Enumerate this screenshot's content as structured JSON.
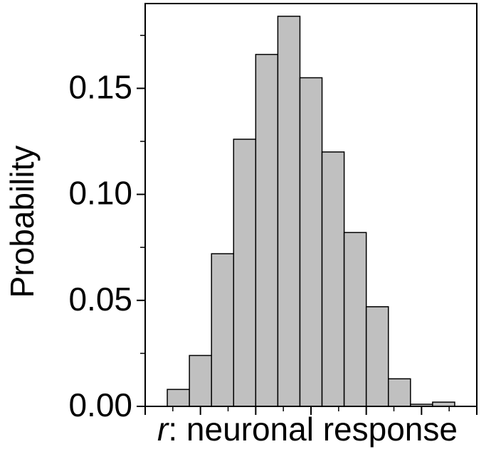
{
  "chart_data": {
    "type": "histogram",
    "xlabel": {
      "variable": "r",
      "text": ": neuronal response"
    },
    "ylabel": "Probability",
    "bins": [
      0.4,
      0.8,
      1.2,
      1.6,
      2.0,
      2.4,
      2.8,
      3.2,
      3.6,
      4.0,
      4.4,
      4.8,
      5.2,
      5.6
    ],
    "values": [
      0.008,
      0.024,
      0.072,
      0.126,
      0.166,
      0.184,
      0.155,
      0.12,
      0.082,
      0.047,
      0.013,
      0.001,
      0.002
    ],
    "color": "#c0c0c0",
    "xlim": [
      0,
      6
    ],
    "xticks": [
      0,
      1,
      2,
      3,
      4,
      5,
      6
    ],
    "xminor_ticks": [
      0.5,
      1.5,
      2.5,
      3.5,
      4.5,
      5.5
    ],
    "ylim": [
      0,
      0.19
    ],
    "yticks": [
      {
        "value": 0,
        "label": "0.00"
      },
      0.05,
      {
        "value": 0.1,
        "label": "0.10"
      },
      0.15
    ],
    "yminor_ticks": [
      0.025,
      0.075,
      0.125,
      0.175
    ]
  }
}
